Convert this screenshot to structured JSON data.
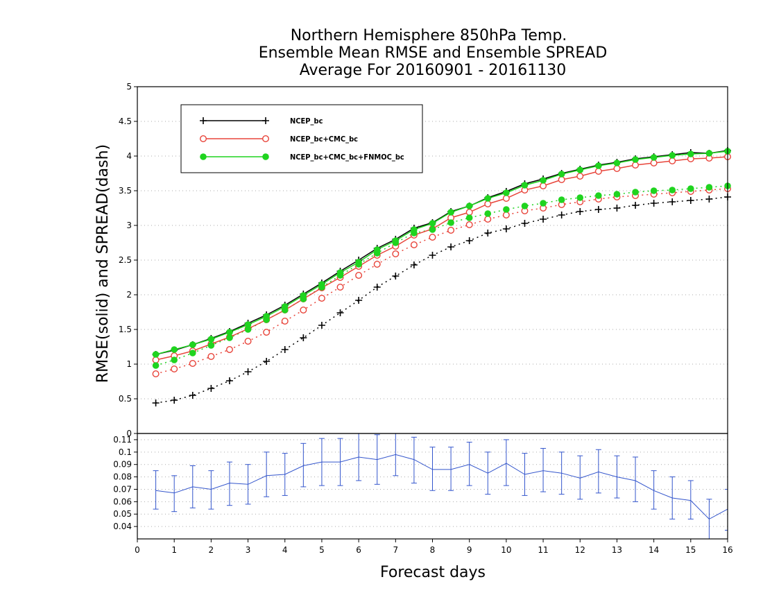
{
  "chart_data": [
    {
      "type": "line",
      "title": [
        "Northern Hemisphere 850hPa Temp.",
        "Ensemble Mean RMSE and Ensemble SPREAD",
        "Average For 20160901 - 20161130"
      ],
      "xlabel": "Forecast days",
      "ylabel": "RMSE(solid)  and  SPREAD(dash)",
      "xlim": [
        0,
        16
      ],
      "ylim": [
        0,
        5
      ],
      "xticks": [
        "0",
        "1",
        "2",
        "3",
        "4",
        "5",
        "6",
        "7",
        "8",
        "9",
        "10",
        "11",
        "12",
        "13",
        "14",
        "15",
        "16"
      ],
      "yticks": [
        "0",
        "0.5",
        "1",
        "1.5",
        "2",
        "2.5",
        "3",
        "3.5",
        "4",
        "4.5",
        "5"
      ],
      "grid": "horizontal dotted",
      "legend_position": "top-left",
      "x": [
        0.5,
        1,
        1.5,
        2,
        2.5,
        3,
        3.5,
        4,
        4.5,
        5,
        5.5,
        6,
        6.5,
        7,
        7.5,
        8,
        8.5,
        9,
        9.5,
        10,
        10.5,
        11,
        11.5,
        12,
        12.5,
        13,
        13.5,
        14,
        14.5,
        15,
        15.5,
        16
      ],
      "series": [
        {
          "name": "NCEP_bc",
          "color": "#000000",
          "marker": "plus",
          "rmse": [
            1.14,
            1.2,
            1.28,
            1.37,
            1.47,
            1.59,
            1.71,
            1.85,
            2.01,
            2.17,
            2.34,
            2.5,
            2.67,
            2.8,
            2.96,
            3.04,
            3.2,
            3.28,
            3.4,
            3.49,
            3.6,
            3.67,
            3.75,
            3.81,
            3.87,
            3.91,
            3.96,
            3.99,
            4.02,
            4.05,
            4.04,
            4.08
          ],
          "spread": [
            0.44,
            0.48,
            0.55,
            0.65,
            0.76,
            0.89,
            1.04,
            1.21,
            1.38,
            1.56,
            1.74,
            1.92,
            2.11,
            2.27,
            2.43,
            2.57,
            2.69,
            2.78,
            2.89,
            2.95,
            3.03,
            3.09,
            3.15,
            3.2,
            3.23,
            3.25,
            3.29,
            3.32,
            3.34,
            3.36,
            3.38,
            3.41
          ]
        },
        {
          "name": "NCEP_bc+CMC_bc",
          "color": "#e8443a",
          "marker": "open-circle",
          "rmse": [
            1.06,
            1.12,
            1.19,
            1.29,
            1.39,
            1.51,
            1.64,
            1.78,
            1.94,
            2.1,
            2.25,
            2.41,
            2.57,
            2.7,
            2.86,
            2.95,
            3.11,
            3.19,
            3.31,
            3.39,
            3.51,
            3.57,
            3.66,
            3.71,
            3.78,
            3.82,
            3.87,
            3.9,
            3.93,
            3.96,
            3.97,
            3.99
          ],
          "spread": [
            0.86,
            0.93,
            1.01,
            1.11,
            1.21,
            1.33,
            1.46,
            1.62,
            1.78,
            1.95,
            2.11,
            2.28,
            2.44,
            2.59,
            2.72,
            2.83,
            2.93,
            3.01,
            3.09,
            3.15,
            3.21,
            3.25,
            3.3,
            3.34,
            3.38,
            3.41,
            3.43,
            3.45,
            3.47,
            3.49,
            3.51,
            3.53
          ]
        },
        {
          "name": "NCEP_bc+CMC_bc+FNMOC_bc",
          "color": "#1fd41f",
          "marker": "filled-circle",
          "rmse": [
            1.14,
            1.21,
            1.28,
            1.36,
            1.46,
            1.57,
            1.69,
            1.83,
            1.99,
            2.15,
            2.32,
            2.47,
            2.65,
            2.78,
            2.94,
            3.03,
            3.19,
            3.28,
            3.39,
            3.47,
            3.58,
            3.65,
            3.74,
            3.8,
            3.86,
            3.9,
            3.95,
            3.98,
            4.01,
            4.03,
            4.04,
            4.07
          ],
          "spread": [
            0.98,
            1.06,
            1.16,
            1.27,
            1.38,
            1.5,
            1.64,
            1.78,
            1.94,
            2.11,
            2.28,
            2.44,
            2.6,
            2.75,
            2.89,
            2.94,
            3.04,
            3.11,
            3.17,
            3.23,
            3.28,
            3.32,
            3.37,
            3.4,
            3.43,
            3.45,
            3.48,
            3.5,
            3.51,
            3.53,
            3.55,
            3.57
          ]
        }
      ]
    },
    {
      "type": "line",
      "title": "",
      "xlim": [
        0,
        16
      ],
      "ylim": [
        0.03,
        0.115
      ],
      "yticks": [
        "0.04",
        "0.05",
        "0.06",
        "0.07",
        "0.08",
        "0.09",
        "0.1",
        "0.11"
      ],
      "grid": "horizontal dotted",
      "series": [
        {
          "color": "#3355cc",
          "x": [
            0.5,
            1,
            1.5,
            2,
            2.5,
            3,
            3.5,
            4,
            4.5,
            5,
            5.5,
            6,
            6.5,
            7,
            7.5,
            8,
            8.5,
            9,
            9.5,
            10,
            10.5,
            11,
            11.5,
            12,
            12.5,
            13,
            13.5,
            14,
            14.5,
            15,
            15.5,
            16
          ],
          "values": [
            0.069,
            0.067,
            0.072,
            0.07,
            0.075,
            0.074,
            0.081,
            0.082,
            0.089,
            0.092,
            0.092,
            0.096,
            0.094,
            0.098,
            0.094,
            0.086,
            0.086,
            0.09,
            0.083,
            0.091,
            0.082,
            0.085,
            0.083,
            0.079,
            0.084,
            0.08,
            0.077,
            0.069,
            0.063,
            0.061,
            0.046,
            0.054
          ],
          "error_low": [
            0.054,
            0.052,
            0.055,
            0.054,
            0.057,
            0.058,
            0.064,
            0.065,
            0.072,
            0.073,
            0.073,
            0.077,
            0.074,
            0.081,
            0.075,
            0.069,
            0.069,
            0.073,
            0.066,
            0.073,
            0.065,
            0.068,
            0.066,
            0.062,
            0.067,
            0.063,
            0.06,
            0.054,
            0.046,
            0.046,
            0.03,
            0.037
          ],
          "error_high": [
            0.085,
            0.081,
            0.089,
            0.085,
            0.092,
            0.09,
            0.1,
            0.099,
            0.107,
            0.111,
            0.111,
            0.116,
            0.114,
            0.116,
            0.112,
            0.104,
            0.104,
            0.108,
            0.1,
            0.11,
            0.099,
            0.103,
            0.1,
            0.097,
            0.102,
            0.097,
            0.096,
            0.085,
            0.08,
            0.077,
            0.062,
            0.07
          ]
        }
      ]
    }
  ]
}
